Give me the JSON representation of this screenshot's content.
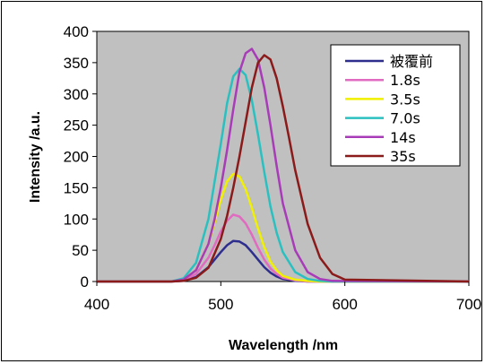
{
  "chart_data": {
    "type": "line",
    "xlabel": "Wavelength /nm",
    "ylabel": "Intensity /a.u.",
    "xlim": [
      400,
      700
    ],
    "ylim": [
      0,
      400
    ],
    "x_ticks": [
      400,
      500,
      600,
      700
    ],
    "y_ticks": [
      0,
      50,
      100,
      150,
      200,
      250,
      300,
      350,
      400
    ],
    "grid": false,
    "plot_background": "#c0c0c0",
    "legend_position": "top-right",
    "series": [
      {
        "name": "被覆前",
        "color": "#2e2e8f",
        "x": [
          400,
          420,
          440,
          460,
          470,
          480,
          490,
          495,
          500,
          505,
          510,
          515,
          520,
          525,
          530,
          535,
          540,
          545,
          550,
          560,
          570,
          580,
          700
        ],
        "y": [
          0,
          0,
          0,
          0,
          1,
          7,
          23,
          35,
          47,
          58,
          65,
          64,
          58,
          47,
          35,
          23,
          14,
          8,
          4,
          1,
          0,
          0,
          0
        ]
      },
      {
        "name": "1.8s",
        "color": "#e06bc0",
        "x": [
          400,
          420,
          440,
          460,
          470,
          480,
          490,
          495,
          500,
          505,
          510,
          515,
          520,
          525,
          530,
          535,
          540,
          545,
          550,
          560,
          570,
          580,
          700
        ],
        "y": [
          0,
          0,
          0,
          0,
          2,
          12,
          38,
          58,
          80,
          97,
          107,
          104,
          93,
          75,
          54,
          35,
          21,
          12,
          6,
          2,
          0,
          0,
          0
        ]
      },
      {
        "name": "3.5s",
        "color": "#f0f000",
        "x": [
          400,
          420,
          440,
          460,
          470,
          480,
          490,
          495,
          500,
          505,
          510,
          515,
          520,
          525,
          530,
          535,
          540,
          545,
          550,
          560,
          570,
          580,
          700
        ],
        "y": [
          0,
          0,
          0,
          0,
          3,
          18,
          60,
          95,
          130,
          160,
          172,
          168,
          148,
          118,
          85,
          55,
          32,
          18,
          9,
          3,
          1,
          0,
          0
        ]
      },
      {
        "name": "7.0s",
        "color": "#2bc0c0",
        "x": [
          400,
          420,
          440,
          460,
          470,
          480,
          490,
          495,
          500,
          505,
          510,
          515,
          520,
          525,
          530,
          535,
          540,
          545,
          550,
          560,
          570,
          580,
          590,
          700
        ],
        "y": [
          0,
          0,
          0,
          0,
          5,
          30,
          100,
          160,
          220,
          285,
          328,
          340,
          330,
          290,
          235,
          175,
          120,
          78,
          47,
          15,
          4,
          1,
          0,
          0
        ]
      },
      {
        "name": "14s",
        "color": "#a83cb8",
        "x": [
          400,
          420,
          440,
          460,
          470,
          480,
          490,
          495,
          500,
          505,
          510,
          515,
          520,
          525,
          530,
          535,
          540,
          545,
          550,
          560,
          570,
          580,
          590,
          700
        ],
        "y": [
          0,
          0,
          0,
          0,
          3,
          18,
          60,
          100,
          150,
          210,
          275,
          335,
          365,
          372,
          355,
          310,
          250,
          185,
          125,
          50,
          15,
          4,
          1,
          0
        ]
      },
      {
        "name": "35s",
        "color": "#8b1a1a",
        "x": [
          400,
          420,
          440,
          460,
          470,
          480,
          490,
          500,
          505,
          510,
          515,
          520,
          525,
          530,
          535,
          540,
          545,
          550,
          555,
          560,
          570,
          580,
          590,
          600,
          700
        ],
        "y": [
          0,
          0,
          0,
          0,
          1,
          6,
          22,
          68,
          105,
          150,
          200,
          255,
          310,
          350,
          362,
          355,
          325,
          280,
          230,
          178,
          92,
          38,
          12,
          3,
          0
        ]
      }
    ]
  }
}
